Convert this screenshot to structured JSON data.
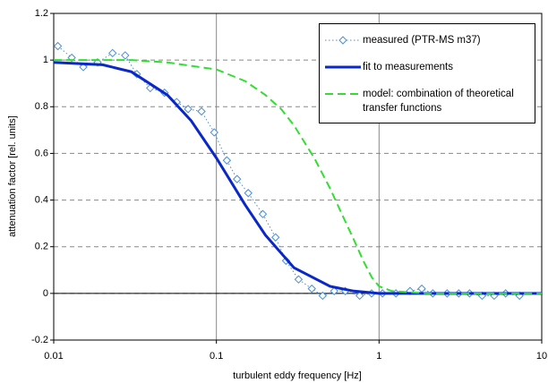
{
  "chart_data": {
    "type": "line",
    "xlabel": "turbulent eddy frequency [Hz]",
    "ylabel": "attenuation factor [rel. units]",
    "xscale": "log",
    "xlim": [
      0.01,
      10
    ],
    "xticks": [
      0.01,
      0.1,
      1,
      10
    ],
    "ylim": [
      -0.2,
      1.2
    ],
    "yticks": [
      -0.2,
      0,
      0.2,
      0.4,
      0.6,
      0.8,
      1,
      1.2
    ],
    "grid": true,
    "legend": "upper right",
    "series": [
      {
        "name": "measured (PTR-MS m37)",
        "color": "#4f8fd0",
        "line_style": "dotted",
        "marker": "diamond",
        "x": [
          0.0106,
          0.0129,
          0.0152,
          0.0186,
          0.023,
          0.0275,
          0.0324,
          0.0392,
          0.048,
          0.057,
          0.067,
          0.081,
          0.097,
          0.116,
          0.134,
          0.157,
          0.193,
          0.231,
          0.268,
          0.32,
          0.386,
          0.45,
          0.53,
          0.62,
          0.76,
          0.9,
          1.05,
          1.27,
          1.55,
          1.83,
          2.14,
          2.62,
          3.09,
          3.6,
          4.3,
          5.1,
          6.0,
          7.3
        ],
        "values": [
          1.06,
          1.01,
          0.97,
          0.99,
          1.03,
          1.02,
          0.94,
          0.88,
          0.86,
          0.82,
          0.79,
          0.78,
          0.69,
          0.57,
          0.49,
          0.43,
          0.34,
          0.24,
          0.14,
          0.06,
          0.02,
          -0.01,
          0.01,
          0.01,
          -0.01,
          0.0,
          0.0,
          0.0,
          0.01,
          0.02,
          0.0,
          0.0,
          0.0,
          0.0,
          -0.01,
          -0.01,
          0.0,
          -0.01
        ]
      },
      {
        "name": "fit to measurements",
        "color": "#0a28c8",
        "line_style": "solid",
        "x": [
          0.01,
          0.02,
          0.03,
          0.05,
          0.07,
          0.1,
          0.15,
          0.2,
          0.3,
          0.5,
          0.7,
          1,
          2,
          10
        ],
        "values": [
          0.99,
          0.98,
          0.95,
          0.85,
          0.74,
          0.58,
          0.38,
          0.25,
          0.11,
          0.03,
          0.01,
          0,
          0,
          0
        ]
      },
      {
        "name": "model: combination of theoretical transfer functions",
        "color": "#33dd33",
        "line_style": "dashed",
        "x": [
          0.01,
          0.03,
          0.05,
          0.1,
          0.15,
          0.2,
          0.25,
          0.3,
          0.4,
          0.5,
          0.6,
          0.7,
          0.8,
          0.9,
          1,
          1.2,
          2,
          10
        ],
        "values": [
          1,
          1,
          0.99,
          0.96,
          0.91,
          0.85,
          0.79,
          0.72,
          0.58,
          0.45,
          0.33,
          0.23,
          0.14,
          0.07,
          0.03,
          0.01,
          0,
          0
        ]
      }
    ]
  }
}
